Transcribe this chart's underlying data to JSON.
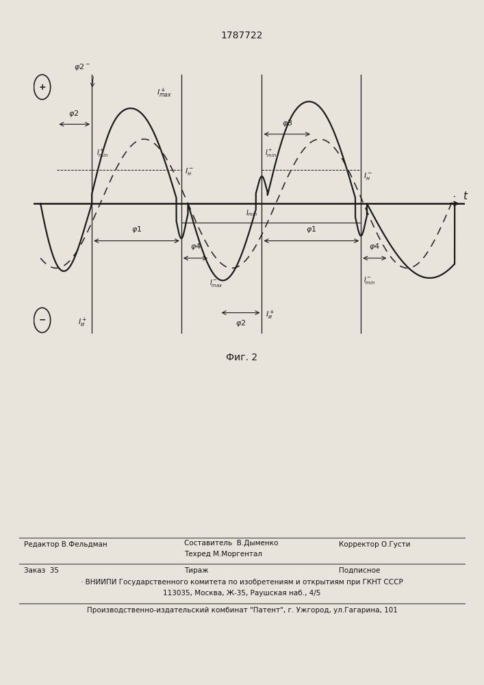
{
  "title": "1787722",
  "fig_label": "Фиг. 2",
  "bg_page": "#e8e4dc",
  "bg_chart": "#e8e4dc",
  "line_color": "#1a1a1a",
  "line_color_dashed": "#2a2a2a",
  "footer_col1": "Редактор В.Фельдман",
  "footer_col2a": "Составитель  В.Дыменко",
  "footer_col2b": "Техред М.Моргентал",
  "footer_col3": "Корректор О.Густи",
  "footer_zakaz": "Заказ  35",
  "footer_tirazh": "Тираж",
  "footer_podp": "Подписное",
  "footer_vniip1": "ВНИИПИ Государственного комитета по изобретениям и открытиям при ГКНТ СССР",
  "footer_vniip2": "113035, Москва, Ж-35, Раушская наб., 4/5",
  "footer_patent": "Производственно-издательский комбинат \"Патент\", г. Ужгород, ул.Гагарина, 101"
}
